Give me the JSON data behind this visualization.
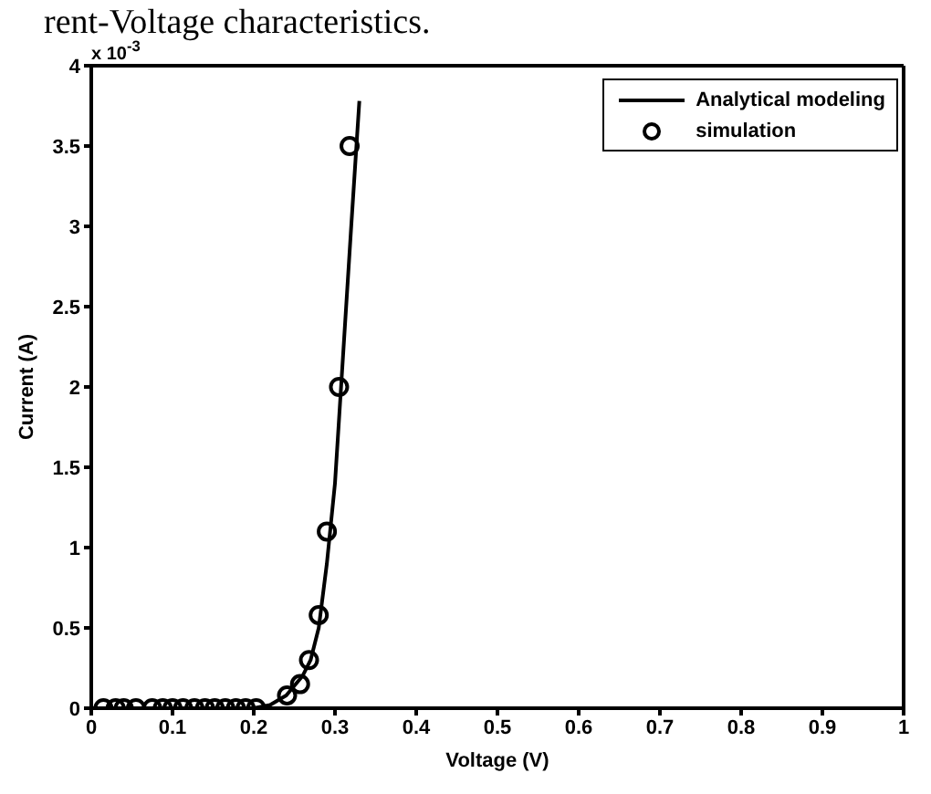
{
  "chart_data": {
    "type": "line",
    "title": "rent-Voltage characteristics.",
    "xlabel": "Voltage (V)",
    "ylabel": "Current (A)",
    "annotations": [
      "x 10$^{-3}$"
    ],
    "xlim": [
      0,
      1
    ],
    "xticks": [
      0,
      0.1,
      0.2,
      0.3,
      0.4,
      0.5,
      0.6,
      0.7,
      0.8,
      0.9,
      1
    ],
    "ylim": [
      0,
      4
    ],
    "yticks": [
      0,
      0.5,
      1,
      1.5,
      2,
      2.5,
      3,
      3.5,
      4
    ],
    "grid": false,
    "legend": "top right",
    "series": [
      {
        "name": "Analytical modeling",
        "color": "#000000",
        "marker": "none",
        "line_style": "solid",
        "x": [
          0,
          0.2,
          0.22,
          0.24,
          0.26,
          0.27,
          0.28,
          0.29,
          0.3,
          0.31,
          0.32,
          0.33
        ],
        "values": [
          0,
          0,
          0.02,
          0.08,
          0.2,
          0.3,
          0.5,
          0.9,
          1.4,
          2.2,
          3.0,
          3.78
        ]
      },
      {
        "name": "simulation",
        "type": "scatter",
        "color": "#000000",
        "marker": "circle",
        "x": [
          0.015,
          0.03,
          0.04,
          0.055,
          0.075,
          0.088,
          0.1,
          0.113,
          0.127,
          0.14,
          0.152,
          0.165,
          0.178,
          0.19,
          0.203,
          0.241,
          0.257,
          0.268,
          0.28,
          0.29,
          0.305,
          0.318
        ],
        "values": [
          0,
          0,
          0,
          0,
          0,
          0,
          0,
          0,
          0,
          0,
          0,
          0,
          0,
          0,
          0,
          0.08,
          0.15,
          0.3,
          0.58,
          1.1,
          2.0,
          3.5
        ]
      }
    ]
  }
}
